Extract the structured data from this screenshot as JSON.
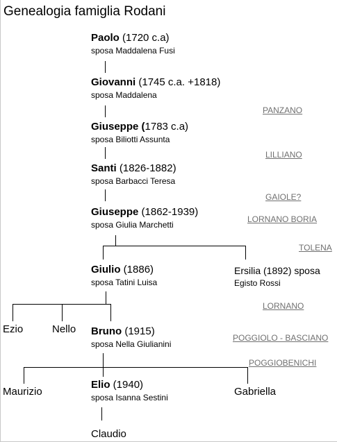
{
  "title": "Genealogia famiglia Rodani",
  "people": [
    {
      "name": "Paolo",
      "detail": " (1720 c.a)",
      "spouse": "sposa Maddalena Fusi"
    },
    {
      "name": "Giovanni",
      "detail": " (1745 c.a. +1818)",
      "spouse": "sposa Maddalena"
    },
    {
      "name": "Giuseppe (",
      "detail": "1783 c.a)",
      "spouse": "sposa Biliotti Assunta"
    },
    {
      "name": "Santi",
      "detail": "  (1826-1882)",
      "spouse": "sposa Barbacci Teresa"
    },
    {
      "name": "Giuseppe",
      "detail": " (1862-1939)",
      "spouse": "sposa Giulia Marchetti"
    },
    {
      "name": "Giulio",
      "detail": " (1886)",
      "spouse": "sposa Tatini Luisa"
    },
    {
      "name": "Bruno",
      "detail": " (1915)",
      "spouse": "sposa Nella Giulianini"
    },
    {
      "name": "Elio",
      "detail": " (1940)",
      "spouse": "sposa Isanna Sestini"
    }
  ],
  "ersilia": {
    "line1": "Ersilia (1892) sposa",
    "line2": "Egisto Rossi"
  },
  "siblings": {
    "ezio": "Ezio",
    "nello": "Nello",
    "maurizio": "Maurizio",
    "gabriella": "Gabriella",
    "claudio": "Claudio"
  },
  "places": [
    "PANZANO",
    "LILLIANO",
    "GAIOLE?",
    "LORNANO BORIA",
    "TOLENA",
    "LORNANO",
    "POGGIOLO - BASCIANO",
    "POGGIOBENICHI"
  ]
}
